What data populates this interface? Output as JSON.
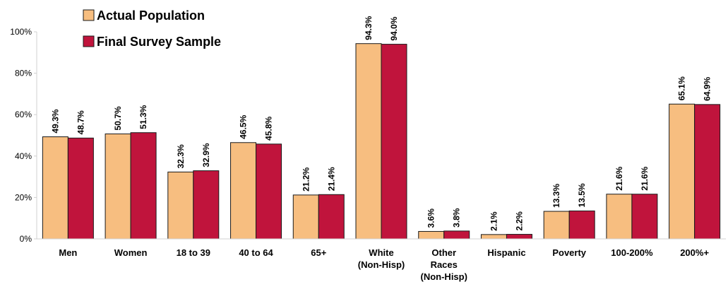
{
  "chart_data": {
    "type": "bar",
    "title": "",
    "xlabel": "",
    "ylabel": "",
    "ylim": [
      0,
      100
    ],
    "yticks": [
      "0%",
      "20%",
      "40%",
      "60%",
      "80%",
      "100%"
    ],
    "grid": false,
    "legend_position": "top-left",
    "categories": [
      [
        "Men"
      ],
      [
        "Women"
      ],
      [
        "18 to 39"
      ],
      [
        "40 to 64"
      ],
      [
        "65+"
      ],
      [
        "White",
        "(Non-Hisp)"
      ],
      [
        "Other",
        "Races",
        "(Non-Hisp)"
      ],
      [
        "Hispanic"
      ],
      [
        "Poverty"
      ],
      [
        "100-200%"
      ],
      [
        "200%+"
      ]
    ],
    "series": [
      {
        "name": "Actual Population",
        "color": "#f7be80",
        "values": [
          49.3,
          50.7,
          32.3,
          46.5,
          21.2,
          94.3,
          3.6,
          2.1,
          13.3,
          21.6,
          65.1
        ],
        "labels": [
          "49.3%",
          "50.7%",
          "32.3%",
          "46.5%",
          "21.2%",
          "94.3%",
          "3.6%",
          "2.1%",
          "13.3%",
          "21.6%",
          "65.1%"
        ]
      },
      {
        "name": "Final Survey Sample",
        "color": "#c0143c",
        "values": [
          48.7,
          51.3,
          32.9,
          45.8,
          21.4,
          94.0,
          3.8,
          2.2,
          13.5,
          21.6,
          64.9
        ],
        "labels": [
          "48.7%",
          "51.3%",
          "32.9%",
          "45.8%",
          "21.4%",
          "94.0%",
          "3.8%",
          "2.2%",
          "13.5%",
          "21.6%",
          "64.9%"
        ]
      }
    ]
  }
}
